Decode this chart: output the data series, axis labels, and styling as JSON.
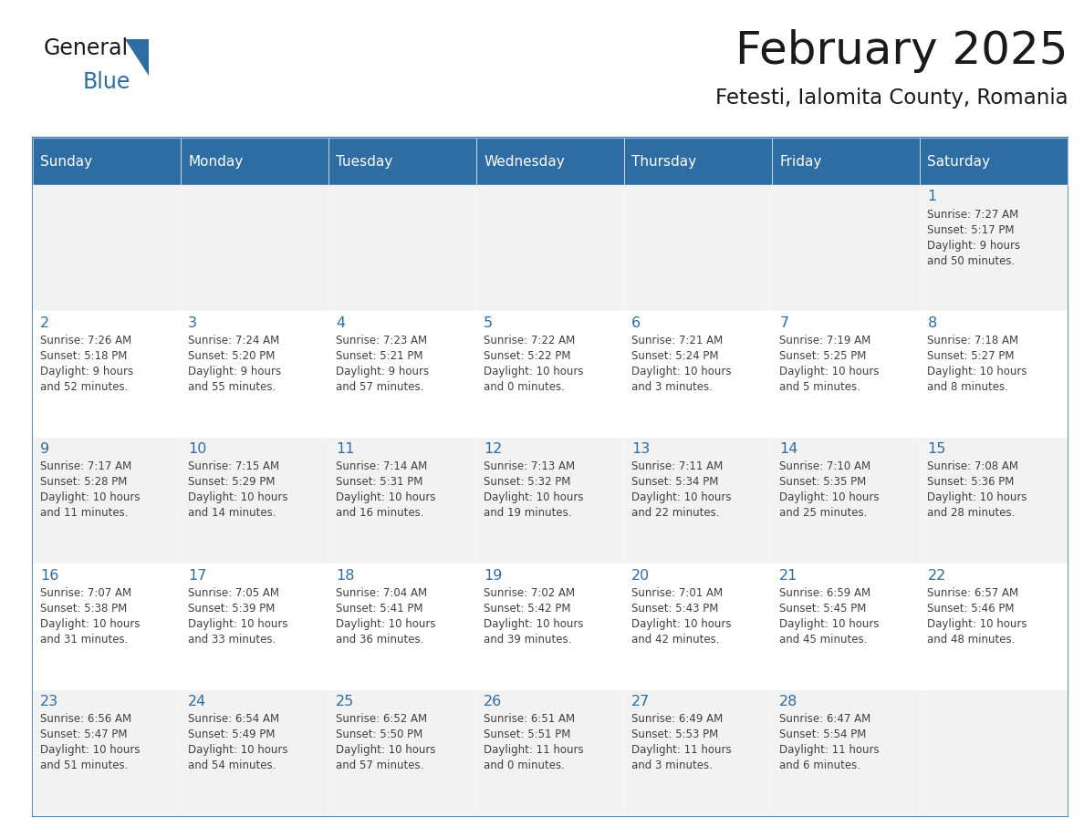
{
  "title": "February 2025",
  "subtitle": "Fetesti, Ialomita County, Romania",
  "header_bg": "#2E6DA4",
  "header_text": "#FFFFFF",
  "border_color": "#2E75B6",
  "day_number_color": "#2E6DA4",
  "info_color": "#404040",
  "days_of_week": [
    "Sunday",
    "Monday",
    "Tuesday",
    "Wednesday",
    "Thursday",
    "Friday",
    "Saturday"
  ],
  "weeks": [
    [
      {
        "day": "",
        "sunrise": "",
        "sunset": "",
        "daylight": ""
      },
      {
        "day": "",
        "sunrise": "",
        "sunset": "",
        "daylight": ""
      },
      {
        "day": "",
        "sunrise": "",
        "sunset": "",
        "daylight": ""
      },
      {
        "day": "",
        "sunrise": "",
        "sunset": "",
        "daylight": ""
      },
      {
        "day": "",
        "sunrise": "",
        "sunset": "",
        "daylight": ""
      },
      {
        "day": "",
        "sunrise": "",
        "sunset": "",
        "daylight": ""
      },
      {
        "day": "1",
        "sunrise": "7:27 AM",
        "sunset": "5:17 PM",
        "daylight": "9 hours and 50 minutes."
      }
    ],
    [
      {
        "day": "2",
        "sunrise": "7:26 AM",
        "sunset": "5:18 PM",
        "daylight": "9 hours and 52 minutes."
      },
      {
        "day": "3",
        "sunrise": "7:24 AM",
        "sunset": "5:20 PM",
        "daylight": "9 hours and 55 minutes."
      },
      {
        "day": "4",
        "sunrise": "7:23 AM",
        "sunset": "5:21 PM",
        "daylight": "9 hours and 57 minutes."
      },
      {
        "day": "5",
        "sunrise": "7:22 AM",
        "sunset": "5:22 PM",
        "daylight": "10 hours and 0 minutes."
      },
      {
        "day": "6",
        "sunrise": "7:21 AM",
        "sunset": "5:24 PM",
        "daylight": "10 hours and 3 minutes."
      },
      {
        "day": "7",
        "sunrise": "7:19 AM",
        "sunset": "5:25 PM",
        "daylight": "10 hours and 5 minutes."
      },
      {
        "day": "8",
        "sunrise": "7:18 AM",
        "sunset": "5:27 PM",
        "daylight": "10 hours and 8 minutes."
      }
    ],
    [
      {
        "day": "9",
        "sunrise": "7:17 AM",
        "sunset": "5:28 PM",
        "daylight": "10 hours and 11 minutes."
      },
      {
        "day": "10",
        "sunrise": "7:15 AM",
        "sunset": "5:29 PM",
        "daylight": "10 hours and 14 minutes."
      },
      {
        "day": "11",
        "sunrise": "7:14 AM",
        "sunset": "5:31 PM",
        "daylight": "10 hours and 16 minutes."
      },
      {
        "day": "12",
        "sunrise": "7:13 AM",
        "sunset": "5:32 PM",
        "daylight": "10 hours and 19 minutes."
      },
      {
        "day": "13",
        "sunrise": "7:11 AM",
        "sunset": "5:34 PM",
        "daylight": "10 hours and 22 minutes."
      },
      {
        "day": "14",
        "sunrise": "7:10 AM",
        "sunset": "5:35 PM",
        "daylight": "10 hours and 25 minutes."
      },
      {
        "day": "15",
        "sunrise": "7:08 AM",
        "sunset": "5:36 PM",
        "daylight": "10 hours and 28 minutes."
      }
    ],
    [
      {
        "day": "16",
        "sunrise": "7:07 AM",
        "sunset": "5:38 PM",
        "daylight": "10 hours and 31 minutes."
      },
      {
        "day": "17",
        "sunrise": "7:05 AM",
        "sunset": "5:39 PM",
        "daylight": "10 hours and 33 minutes."
      },
      {
        "day": "18",
        "sunrise": "7:04 AM",
        "sunset": "5:41 PM",
        "daylight": "10 hours and 36 minutes."
      },
      {
        "day": "19",
        "sunrise": "7:02 AM",
        "sunset": "5:42 PM",
        "daylight": "10 hours and 39 minutes."
      },
      {
        "day": "20",
        "sunrise": "7:01 AM",
        "sunset": "5:43 PM",
        "daylight": "10 hours and 42 minutes."
      },
      {
        "day": "21",
        "sunrise": "6:59 AM",
        "sunset": "5:45 PM",
        "daylight": "10 hours and 45 minutes."
      },
      {
        "day": "22",
        "sunrise": "6:57 AM",
        "sunset": "5:46 PM",
        "daylight": "10 hours and 48 minutes."
      }
    ],
    [
      {
        "day": "23",
        "sunrise": "6:56 AM",
        "sunset": "5:47 PM",
        "daylight": "10 hours and 51 minutes."
      },
      {
        "day": "24",
        "sunrise": "6:54 AM",
        "sunset": "5:49 PM",
        "daylight": "10 hours and 54 minutes."
      },
      {
        "day": "25",
        "sunrise": "6:52 AM",
        "sunset": "5:50 PM",
        "daylight": "10 hours and 57 minutes."
      },
      {
        "day": "26",
        "sunrise": "6:51 AM",
        "sunset": "5:51 PM",
        "daylight": "11 hours and 0 minutes."
      },
      {
        "day": "27",
        "sunrise": "6:49 AM",
        "sunset": "5:53 PM",
        "daylight": "11 hours and 3 minutes."
      },
      {
        "day": "28",
        "sunrise": "6:47 AM",
        "sunset": "5:54 PM",
        "daylight": "11 hours and 6 minutes."
      },
      {
        "day": "",
        "sunrise": "",
        "sunset": "",
        "daylight": ""
      }
    ]
  ]
}
